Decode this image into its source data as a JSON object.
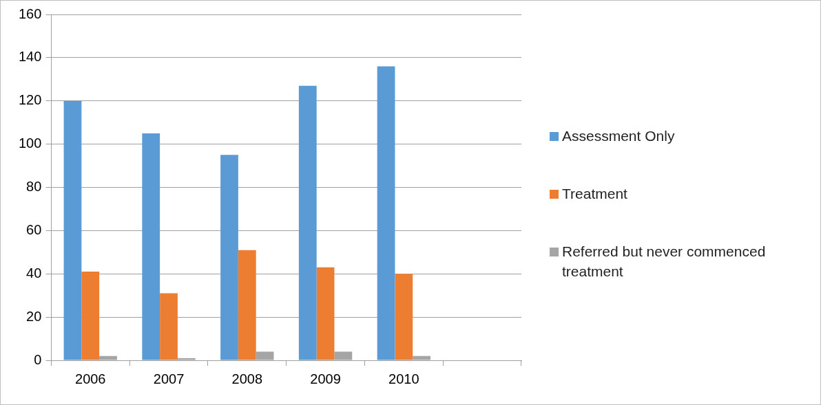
{
  "chart_data": {
    "type": "bar",
    "categories": [
      "2006",
      "2007",
      "2008",
      "2009",
      "2010",
      null
    ],
    "series": [
      {
        "name": "Assessment Only",
        "color": "#5b9bd5",
        "values": [
          120,
          105,
          95,
          127,
          136,
          null
        ]
      },
      {
        "name": "Treatment",
        "color": "#ed7d31",
        "values": [
          41,
          31,
          51,
          43,
          40,
          null
        ]
      },
      {
        "name": "Referred but never commenced treatment",
        "color": "#a5a5a5",
        "values": [
          2,
          1,
          4,
          4,
          2,
          null
        ]
      }
    ],
    "ylim": [
      0,
      160
    ],
    "yticks": [
      0,
      20,
      40,
      60,
      80,
      100,
      120,
      140,
      160
    ],
    "grid": "y",
    "legend": "right"
  }
}
